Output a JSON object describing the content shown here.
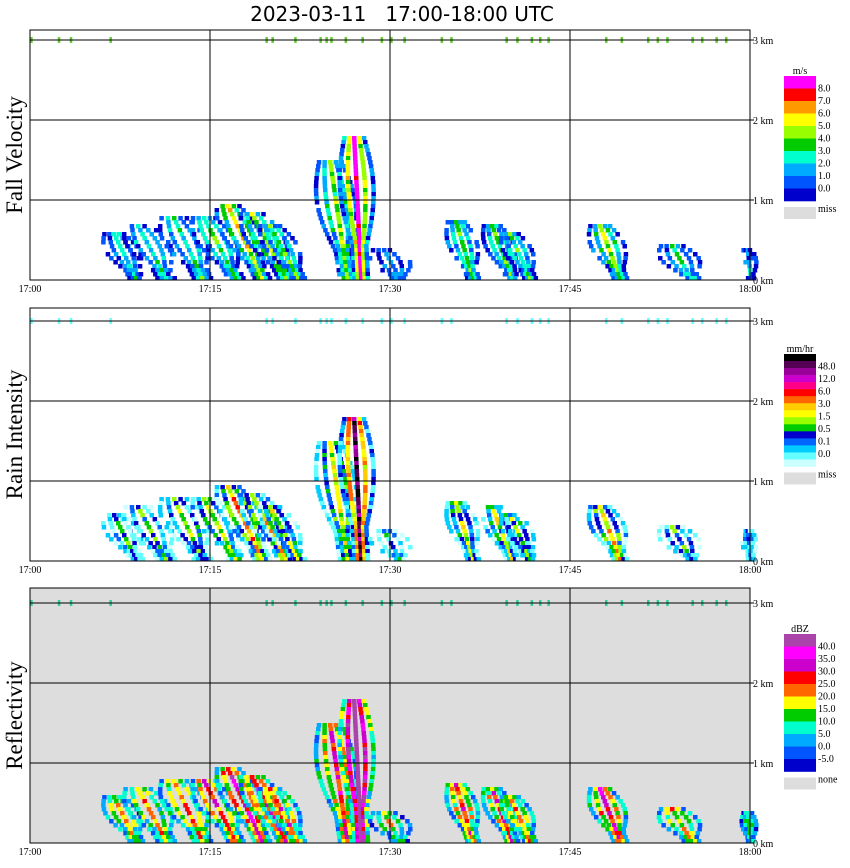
{
  "chart_data": {
    "type": "heatmap",
    "title": "2023-03-11   17:00-18:00 UTC",
    "x_ticks": [
      "17:00",
      "17:15",
      "17:30",
      "17:45",
      "18:00"
    ],
    "x_range_minutes": [
      0,
      60
    ],
    "y_ticks": [
      "0 km",
      "1 km",
      "2 km",
      "3 km"
    ],
    "y_range_km": [
      0,
      3
    ],
    "grid": true,
    "panels": [
      {
        "name": "Fall Velocity",
        "background": "#ffffff",
        "colorbar": {
          "unit": "m/s",
          "labels": [
            "8.0",
            "7.0",
            "6.0",
            "5.0",
            "4.0",
            "3.0",
            "2.0",
            "1.0",
            "0.0"
          ],
          "colors": [
            "#ff00ff",
            "#ff0000",
            "#ff9900",
            "#ffff00",
            "#99ff00",
            "#00cc00",
            "#00ffcc",
            "#00aaff",
            "#0055ff",
            "#0000cc"
          ],
          "miss_label": "miss",
          "miss_color": "#dddddd"
        }
      },
      {
        "name": "Rain Intensity",
        "background": "#ffffff",
        "colorbar": {
          "unit": "mm/hr",
          "labels": [
            "48.0",
            "12.0",
            "6.0",
            "3.0",
            "1.5",
            "0.5",
            "0.1",
            "0.0"
          ],
          "colors": [
            "#000000",
            "#550055",
            "#990099",
            "#cc00cc",
            "#ff0088",
            "#ff0000",
            "#ff6600",
            "#ffcc00",
            "#ffff00",
            "#99ff00",
            "#00cc00",
            "#0000cc",
            "#0066ff",
            "#00ccff",
            "#66ffff",
            "#ccffff"
          ],
          "miss_label": "miss",
          "miss_color": "#dddddd"
        }
      },
      {
        "name": "Reflectivity",
        "background": "#dddddd",
        "colorbar": {
          "unit": "dBZ",
          "labels": [
            "40.0",
            "35.0",
            "30.0",
            "25.0",
            "20.0",
            "15.0",
            "10.0",
            "5.0",
            "0.0",
            "-5.0"
          ],
          "colors": [
            "#aa44aa",
            "#ff00ff",
            "#cc00cc",
            "#ff0000",
            "#ff6600",
            "#ffff00",
            "#00cc00",
            "#00ffcc",
            "#00aaff",
            "#0055ff",
            "#0000cc"
          ],
          "miss_label": "none",
          "miss_color": "#dddddd"
        }
      }
    ],
    "rain_shafts": [
      {
        "t": 7.0,
        "top_km": 0.6,
        "width_min": 1.4,
        "tilt_min": 2.0,
        "core": 0.3
      },
      {
        "t": 9.0,
        "top_km": 0.7,
        "width_min": 1.8,
        "tilt_min": 2.5,
        "core": 0.35
      },
      {
        "t": 12.0,
        "top_km": 0.8,
        "width_min": 1.8,
        "tilt_min": 2.5,
        "core": 0.4
      },
      {
        "t": 14.5,
        "top_km": 0.8,
        "width_min": 1.6,
        "tilt_min": 2.8,
        "core": 0.45
      },
      {
        "t": 16.5,
        "top_km": 0.95,
        "width_min": 1.6,
        "tilt_min": 3.0,
        "core": 0.6
      },
      {
        "t": 18.5,
        "top_km": 0.85,
        "width_min": 1.6,
        "tilt_min": 3.0,
        "core": 0.55
      },
      {
        "t": 20.0,
        "top_km": 0.7,
        "width_min": 1.4,
        "tilt_min": 2.5,
        "core": 0.45
      },
      {
        "t": 25.0,
        "top_km": 1.5,
        "width_min": 1.6,
        "tilt_min": 1.5,
        "core": 0.5
      },
      {
        "t": 27.0,
        "top_km": 1.8,
        "width_min": 1.4,
        "tilt_min": 0.6,
        "core": 1.0
      },
      {
        "t": 29.5,
        "top_km": 0.4,
        "width_min": 1.6,
        "tilt_min": 1.5,
        "core": 0.25
      },
      {
        "t": 35.5,
        "top_km": 0.75,
        "width_min": 1.2,
        "tilt_min": 1.5,
        "core": 0.45
      },
      {
        "t": 38.5,
        "top_km": 0.7,
        "width_min": 1.2,
        "tilt_min": 1.8,
        "core": 0.45
      },
      {
        "t": 40.0,
        "top_km": 0.6,
        "width_min": 1.2,
        "tilt_min": 1.8,
        "core": 0.4
      },
      {
        "t": 47.5,
        "top_km": 0.7,
        "width_min": 1.4,
        "tilt_min": 1.8,
        "core": 0.55
      },
      {
        "t": 53.5,
        "top_km": 0.45,
        "width_min": 1.6,
        "tilt_min": 1.8,
        "core": 0.35
      },
      {
        "t": 59.8,
        "top_km": 0.4,
        "width_min": 0.6,
        "tilt_min": 0.3,
        "core": 0.2
      }
    ],
    "top_echo_times_min": [
      0.1,
      2.4,
      3.4,
      6.7,
      19.7,
      20.2,
      22.1,
      24.2,
      24.7,
      25.1,
      26.3,
      27.7,
      29.3,
      30.1,
      31.2,
      34.3,
      35.1,
      39.7,
      40.6,
      41.8,
      42.5,
      43.2,
      48.0,
      49.3,
      51.5,
      52.3,
      53.1,
      55.2,
      56.0,
      57.2,
      58.0
    ]
  }
}
